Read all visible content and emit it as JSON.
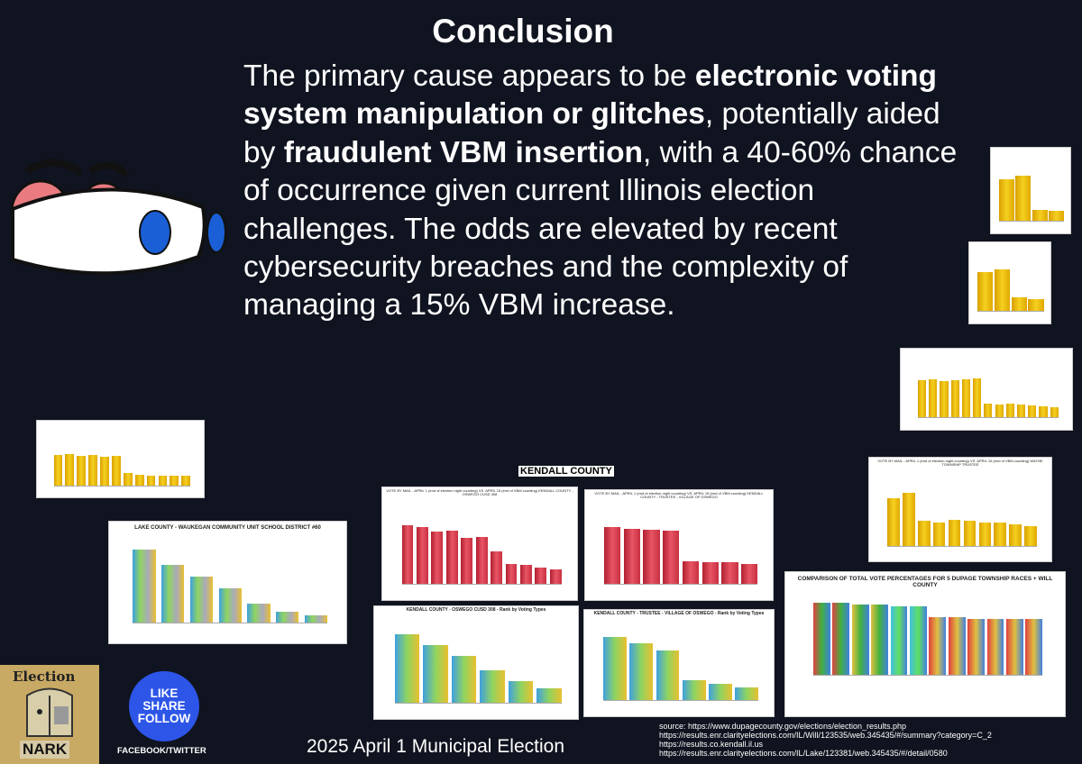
{
  "title": "Conclusion",
  "paragraph": {
    "p1": "The primary cause appears to be ",
    "b1": "electronic voting system manipulation or glitches",
    "p2": ", potentially aided by ",
    "b2": "fraudulent VBM insertion",
    "p3": ", with a 40-60% chance of occurrence given current Illinois election challenges. The odds are elevated by recent cybersecurity breaches and the complexity of managing a 15% VBM increase."
  },
  "kendall_label": "KENDALL COUNTY",
  "lake_chart_title": "LAKE COUNTY - WAUKEGAN COMMUNITY UNIT SCHOOL DISTRICT #60",
  "comparison_chart_title": "COMPARISON OF TOTAL VOTE PERCENTAGES FOR 5 DUPAGE TOWNSHIP RACES + WILL COUNTY",
  "oswego_cusd_title": "KENDALL COUNTY - OSWEGO CUSD 308 - Rank by Voting Types",
  "oswego_village_title": "KENDALL COUNTY - TRUSTEE - VILLAGE OF OSWEGO - Rank by Voting Types",
  "red1_title": "VOTE BY MAIL - APRIL 1 (end of election night counting) VS. APRIL 15 (end of VBM counting) KENDALL COUNTY - OSWEGO CUSD 308",
  "red2_title": "VOTE BY MAIL - APRIL 1 (end of election night counting) VS. APRIL 15 (end of VBM counting) KENDALL COUNTY - TRUSTEE - VILLAGE OF OSWEGO",
  "wayne_title": "VOTE BY MAIL - APRIL 1 (end of election night counting) VS. APRIL 15 (end of VBM counting) WAYNE TOWNSHIP TRUSTEE",
  "footer": "2025 April 1 Municipal Election",
  "sources": [
    "source: https://www.dupagecounty.gov/elections/election_results.php",
    "https://results.enr.clarityelections.com/IL/Will/123535/web.345435/#/summary?category=C_2",
    "https://results.co.kendall.il.us",
    "https://results.enr.clarityelections.com/IL/Lake/123381/web.345435/#/detail/0580"
  ],
  "social": {
    "line1": "LIKE",
    "line2": "SHARE",
    "line3": "FOLLOW",
    "caption": "FACEBOOK/TWITTER"
  },
  "logo": {
    "top": "Election",
    "bottom": "NARK"
  },
  "colors": {
    "background": "#101420",
    "gold": "#e8b400",
    "red": "#d8404f",
    "badge": "#2d55e8"
  }
}
